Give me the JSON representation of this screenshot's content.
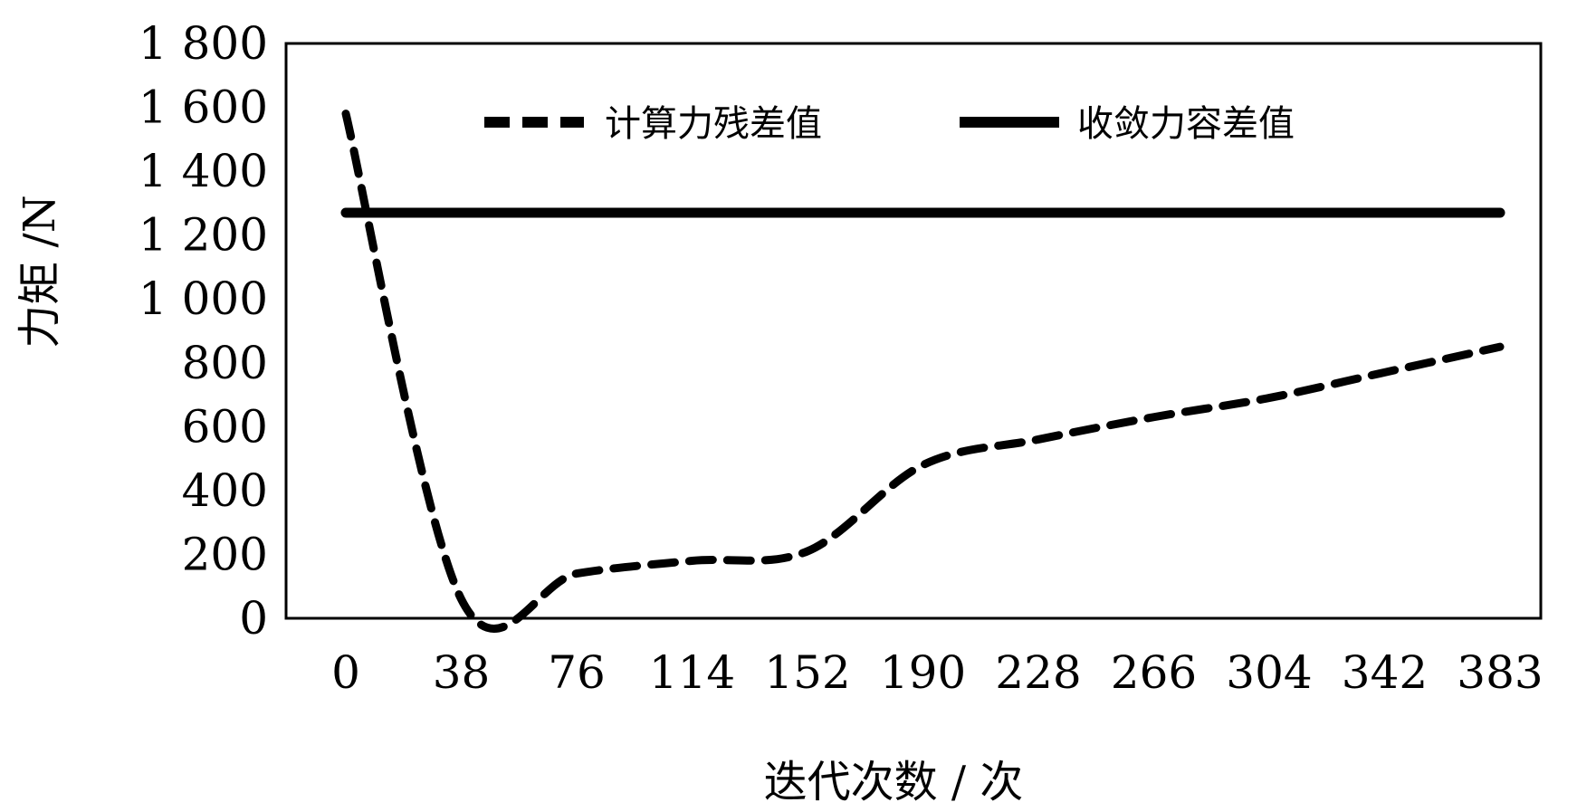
{
  "chart_data": {
    "type": "line",
    "title": "",
    "xlabel": "迭代次数 / 次",
    "ylabel": "力矩 /N",
    "categories": [
      "0",
      "38",
      "76",
      "114",
      "152",
      "190",
      "228",
      "266",
      "304",
      "342",
      "383"
    ],
    "ylim": [
      0,
      1800
    ],
    "yticks": [
      "0",
      "200",
      "400",
      "600",
      "800",
      "1 000",
      "1 200",
      "1 400",
      "1 600",
      "1 800"
    ],
    "grid": false,
    "legend_position": "top",
    "series": [
      {
        "name": "计算力残差值",
        "style": "dashed",
        "color": "#000000",
        "values": [
          1580,
          60,
          140,
          180,
          210,
          480,
          560,
          630,
          690,
          770,
          850
        ]
      },
      {
        "name": "收敛力容差值",
        "style": "solid",
        "color": "#000000",
        "values": [
          1270,
          1270,
          1270,
          1270,
          1270,
          1270,
          1270,
          1270,
          1270,
          1270,
          1270
        ]
      }
    ]
  }
}
